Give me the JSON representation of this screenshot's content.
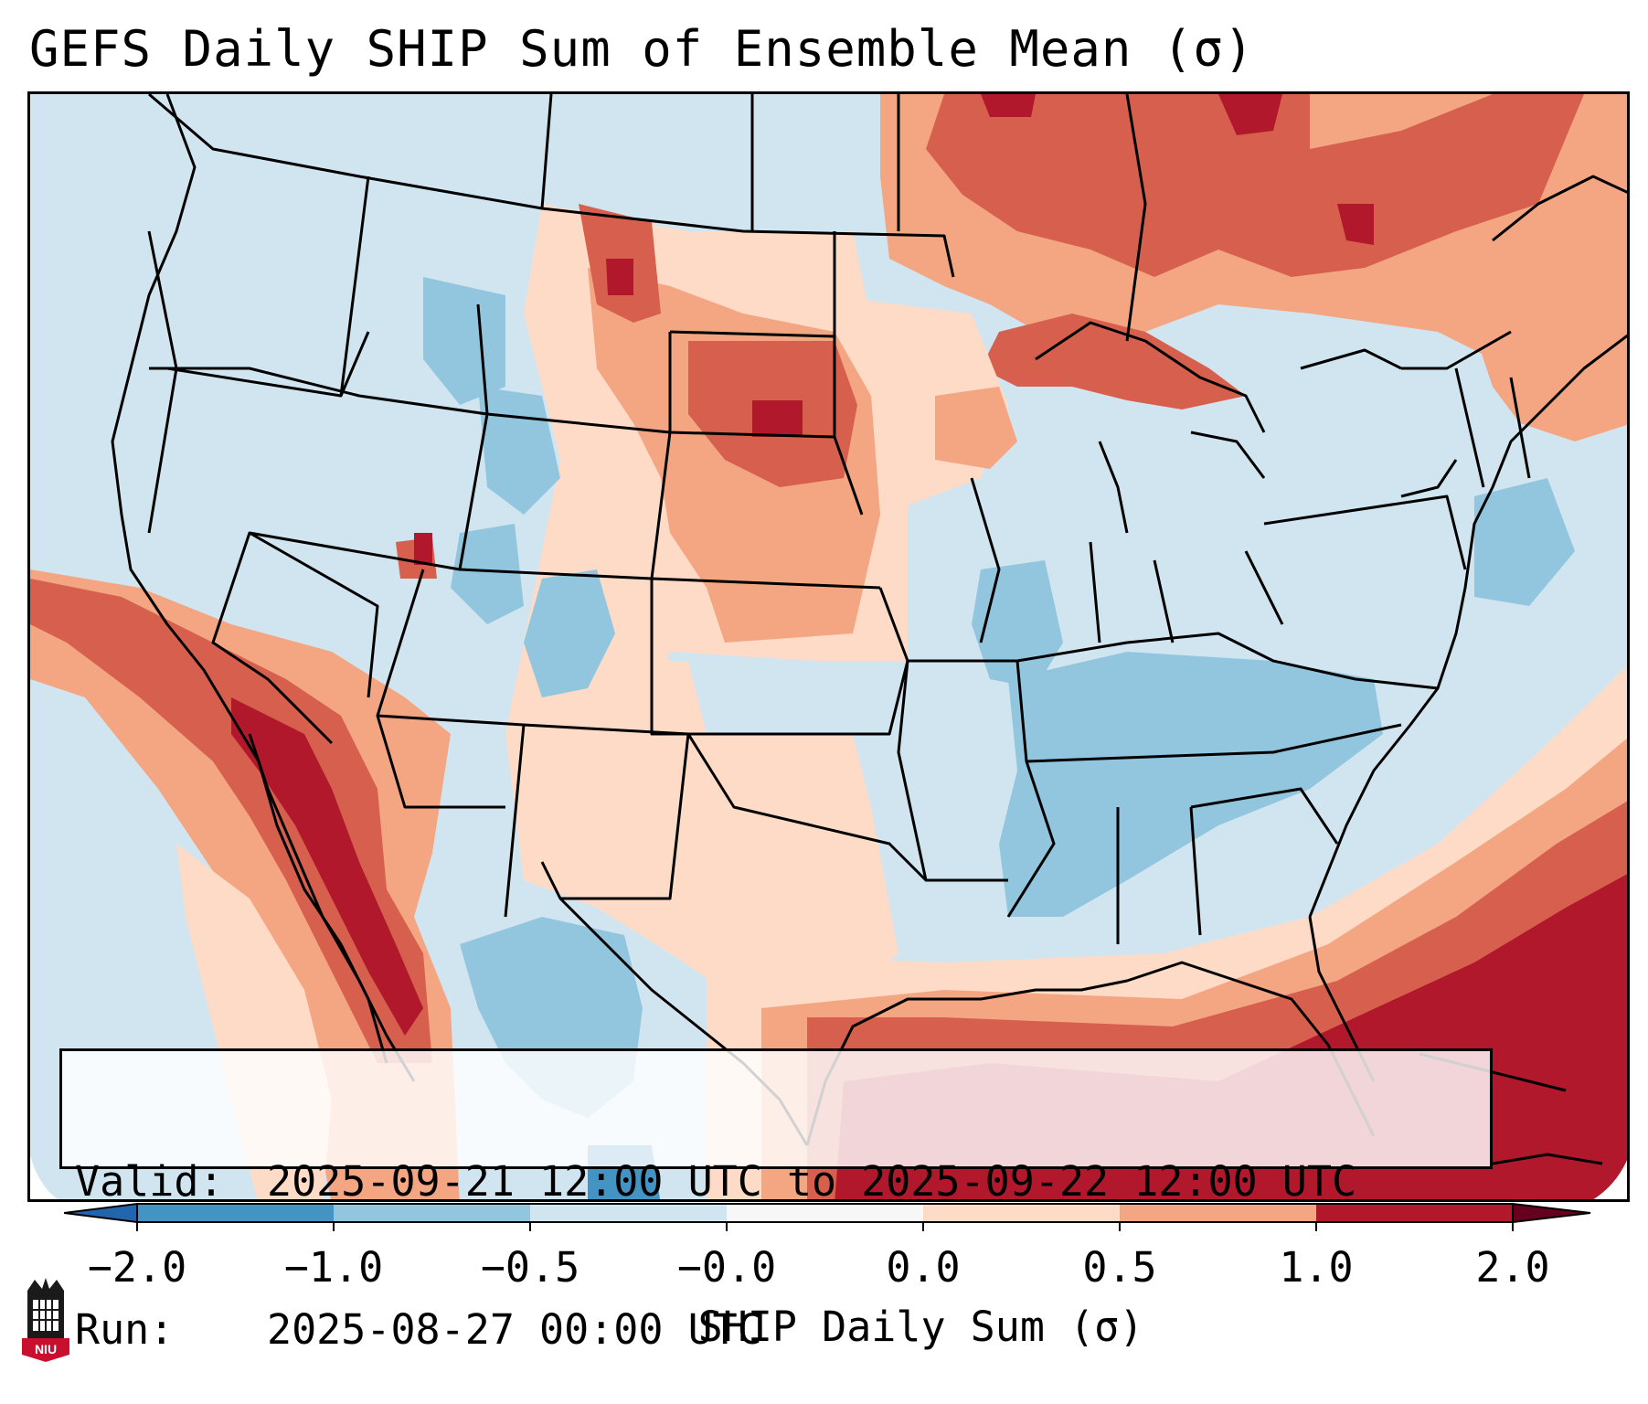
{
  "title": "GEFS Daily SHIP Sum of Ensemble Mean (σ)",
  "info": {
    "valid_label": "Valid:",
    "valid_value": "2025-09-21 12:00 UTC to 2025-09-22 12:00 UTC",
    "run_label": "Run:",
    "run_value": "2025-08-27 00:00 UTC"
  },
  "colorbar": {
    "label": "SHIP Daily Sum (σ)",
    "ticks": [
      "−2.0",
      "−1.0",
      "−0.5",
      "−0.0",
      "0.0",
      "0.5",
      "1.0",
      "2.0"
    ],
    "colors": [
      "#4393c3",
      "#92c5de",
      "#d1e5f0",
      "#f7f7f7",
      "#fddbc7",
      "#f4a582",
      "#d6604d",
      "#b2182b"
    ]
  },
  "map": {
    "region": "Contiguous United States",
    "ocean_background_color": "#cfe4f0"
  },
  "logo": {
    "text": "NIU",
    "color": "#c8102e"
  }
}
